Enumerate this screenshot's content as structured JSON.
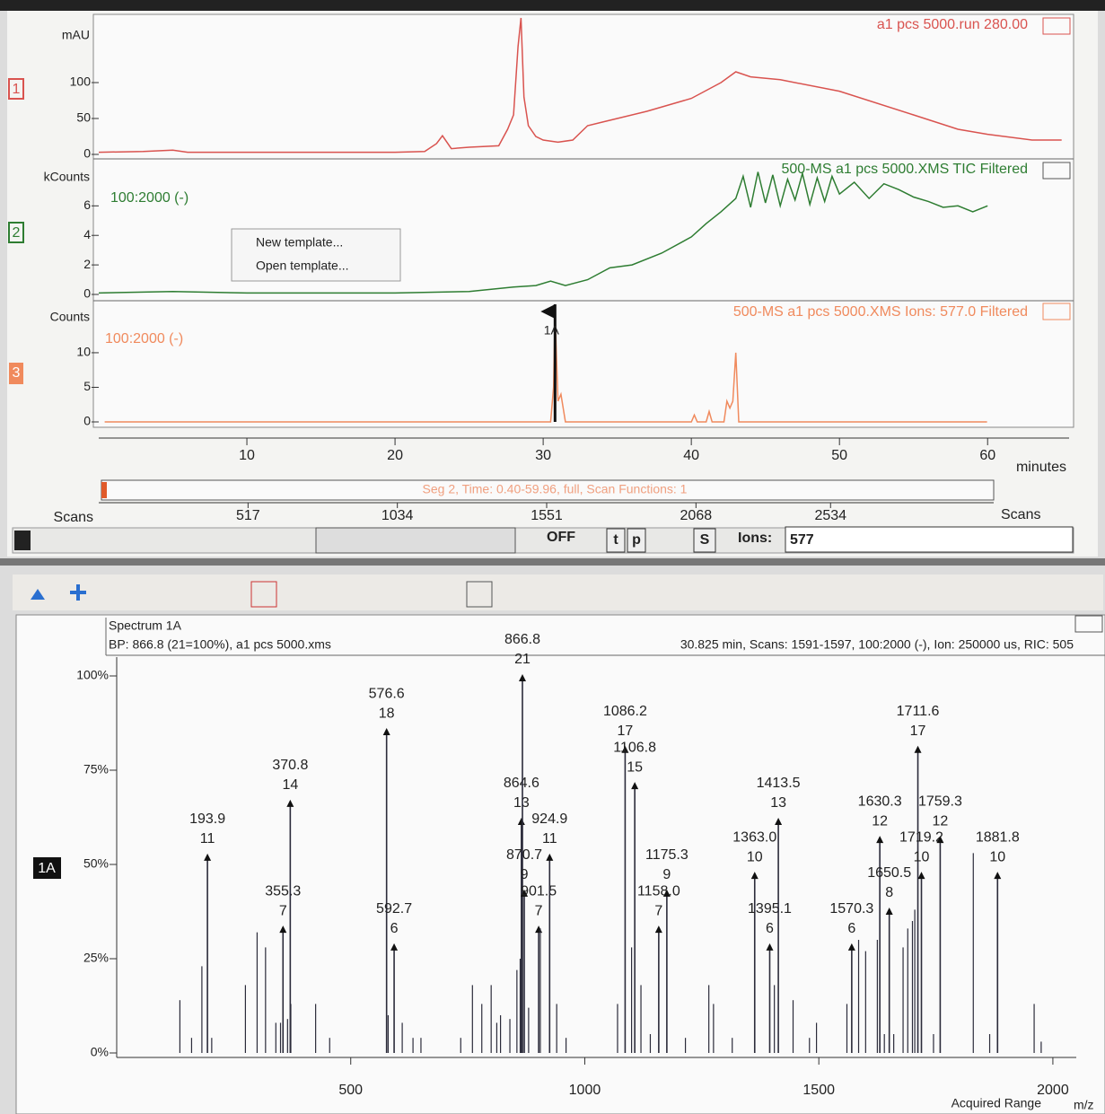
{
  "ui": {
    "menu": [
      "New template...",
      "Open template..."
    ],
    "time_axis_label": "minutes",
    "segment": "Seg 2, Time: 0.40-59.96, full, Scan Functions: 1",
    "scans_left": "Scans",
    "scans_right": "Scans",
    "scan_lim": [
      0,
      3360
    ],
    "scan_ticks": [
      517,
      1034,
      1551,
      2068,
      2534
    ],
    "state": "OFF",
    "buttons": [
      "t",
      "p",
      "S"
    ],
    "ions_label": "Ions:",
    "ions_value": "577"
  },
  "chart_data": [
    {
      "type": "line",
      "panel": "1",
      "ylabel": "mAU",
      "header": "a1 pcs 5000.run 280.00",
      "color": "#d9534f",
      "xlim": [
        0,
        65.5
      ],
      "ylim": [
        0,
        190
      ],
      "yticks": [
        0,
        50,
        100
      ],
      "x": [
        0,
        3,
        5,
        6,
        10,
        15,
        20,
        22,
        22.8,
        23.2,
        23.8,
        25,
        27,
        27.6,
        28,
        28.3,
        28.5,
        28.7,
        29,
        29.5,
        30,
        31,
        32,
        33,
        34,
        35,
        37,
        40,
        42,
        43,
        44,
        46,
        50,
        55,
        58,
        60,
        63,
        65
      ],
      "values": [
        3,
        4,
        6,
        3,
        3,
        3,
        3,
        4,
        15,
        26,
        8,
        10,
        12,
        35,
        55,
        150,
        190,
        80,
        40,
        25,
        20,
        17,
        20,
        40,
        45,
        50,
        60,
        78,
        100,
        115,
        108,
        104,
        88,
        55,
        35,
        28,
        20,
        20
      ]
    },
    {
      "type": "line",
      "panel": "2",
      "ylabel": "kCounts",
      "header": "500-MS a1 pcs 5000.XMS TIC Filtered",
      "subheader": "100:2000 (-)",
      "color": "#2e7d32",
      "xlim": [
        0,
        65.5
      ],
      "ylim": [
        0,
        9
      ],
      "yticks": [
        0,
        2,
        4,
        6
      ],
      "x": [
        0,
        5,
        10,
        15,
        20,
        25,
        28,
        29.5,
        30.5,
        31.5,
        33,
        34.5,
        36,
        38,
        40,
        41,
        42,
        43,
        43.5,
        44,
        44.5,
        45,
        45.5,
        46,
        46.5,
        47,
        47.5,
        48,
        48.5,
        49,
        49.5,
        50,
        51,
        52,
        53,
        54,
        55,
        56,
        57,
        58,
        59,
        60
      ],
      "values": [
        0.1,
        0.2,
        0.1,
        0.1,
        0.1,
        0.2,
        0.5,
        0.6,
        0.9,
        0.6,
        1.0,
        1.8,
        2.0,
        2.8,
        3.9,
        4.8,
        5.6,
        6.5,
        8.0,
        5.9,
        8.3,
        6.2,
        8.1,
        6.0,
        7.8,
        6.4,
        8.2,
        6.1,
        7.9,
        6.3,
        8.0,
        6.8,
        7.6,
        6.5,
        7.5,
        7.1,
        6.6,
        6.3,
        5.9,
        6.0,
        5.6,
        6.0
      ]
    },
    {
      "type": "line",
      "panel": "3",
      "ylabel": "Counts",
      "header": "500-MS a1 pcs 5000.XMS Ions: 577.0 Filtered",
      "subheader": "100:2000 (-)",
      "color": "#f08a5d",
      "xlim": [
        0,
        65.5
      ],
      "ylim": [
        0,
        17
      ],
      "yticks": [
        0,
        5,
        10
      ],
      "xticks": [
        10,
        20,
        30,
        40,
        50,
        60
      ],
      "marker": {
        "x": 30.8,
        "label": "1A"
      },
      "x": [
        0.4,
        30.5,
        30.7,
        30.8,
        31.0,
        31.2,
        31.5,
        40,
        40.2,
        40.4,
        41,
        41.2,
        41.4,
        42.2,
        42.4,
        42.6,
        42.8,
        43,
        43.2,
        43.4,
        59.96
      ],
      "values": [
        0,
        0,
        5,
        16,
        3,
        4,
        0,
        0,
        1,
        0,
        0,
        1.5,
        0,
        0,
        3,
        2,
        3,
        10,
        0,
        0,
        0
      ]
    },
    {
      "type": "stem",
      "title": "Spectrum 1A",
      "subtitle": "BP: 866.8 (21=100%), a1 pcs 5000.xms",
      "info": "30.825 min, Scans: 1591-1597, 100:2000 (-), Ion: 250000 us, RIC: 505",
      "tag": "1A",
      "xlabel": "m/z",
      "range_label": "Acquired Range",
      "color": "#2b2b3a",
      "xlim": [
        0,
        2050
      ],
      "xticks": [
        500,
        1000,
        1500,
        2000
      ],
      "ylim": [
        0,
        105
      ],
      "yticks": [
        {
          "value": 0,
          "label": "0%"
        },
        {
          "value": 25,
          "label": "25%"
        },
        {
          "value": 50,
          "label": "50%"
        },
        {
          "value": 75,
          "label": "75%"
        },
        {
          "value": 100,
          "label": "100%"
        }
      ],
      "series": [
        {
          "x": [
            193.9,
            355.3,
            370.8,
            576.6,
            592.7,
            864.6,
            866.8,
            870.7,
            901.5,
            924.9,
            1086.2,
            1106.8,
            1158.0,
            1175.3,
            1363.0,
            1395.1,
            1413.5,
            1570.3,
            1630.3,
            1650.5,
            1711.6,
            1719.2,
            1759.3,
            1881.8
          ],
          "x_labels": [
            "193.9",
            "355.3",
            "370.8",
            "576.6",
            "592.7",
            "864.6",
            "866.8",
            "870.7",
            "901.5",
            "924.9",
            "1086.2",
            "1106.8",
            "1158.0",
            "1175.3",
            "1363.0",
            "1395.1",
            "1413.5",
            "1570.3",
            "1630.3",
            "1650.5",
            "1711.6",
            "1719.2",
            "1759.3",
            "1881.8"
          ],
          "counts": [
            11,
            7,
            14,
            18,
            6,
            13,
            21,
            9,
            7,
            11,
            17,
            15,
            7,
            9,
            10,
            6,
            13,
            6,
            12,
            8,
            17,
            10,
            12,
            10
          ],
          "values": [
            52.4,
            33.3,
            66.7,
            85.7,
            28.6,
            61.9,
            100,
            42.9,
            33.3,
            52.4,
            81,
            71.4,
            33.3,
            42.9,
            47.6,
            28.6,
            61.9,
            28.6,
            57.1,
            38.1,
            81,
            47.6,
            57.1,
            47.6
          ]
        },
        {
          "x": [
            135,
            160,
            182,
            203,
            275,
            300,
            318,
            340,
            350,
            365,
            372,
            425,
            455,
            580,
            610,
            633,
            650,
            735,
            760,
            780,
            800,
            812,
            820,
            840,
            855,
            862,
            880,
            905,
            940,
            960,
            1070,
            1100,
            1120,
            1140,
            1215,
            1265,
            1275,
            1315,
            1405,
            1445,
            1480,
            1495,
            1560,
            1585,
            1600,
            1625,
            1640,
            1660,
            1680,
            1690,
            1700,
            1705,
            1745,
            1830,
            1865,
            1960,
            1975
          ],
          "values": [
            14,
            4,
            23,
            4,
            18,
            32,
            28,
            8,
            8,
            9,
            13,
            13,
            4,
            10,
            8,
            4,
            4,
            4,
            18,
            13,
            18,
            8,
            10,
            9,
            22,
            25,
            12,
            33,
            13,
            4,
            13,
            28,
            18,
            5,
            4,
            18,
            13,
            4,
            18,
            14,
            4,
            8,
            13,
            30,
            27,
            30,
            5,
            5,
            28,
            33,
            35,
            38,
            5,
            53,
            5,
            13,
            3
          ]
        }
      ]
    }
  ]
}
